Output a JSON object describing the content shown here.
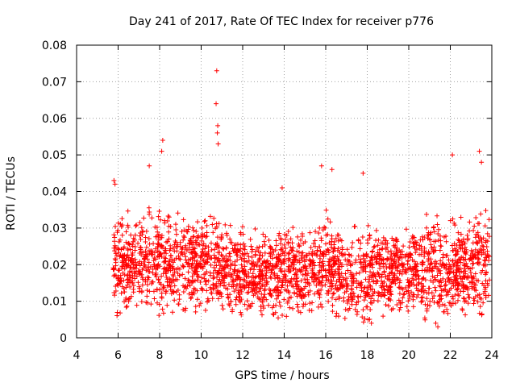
{
  "chart_data": {
    "type": "scatter",
    "title": "Day 241 of 2017, Rate Of TEC Index for receiver p776",
    "xlabel": "GPS time / hours",
    "ylabel": "ROTI / TECUs",
    "xlim": [
      4,
      24
    ],
    "ylim": [
      0,
      0.08
    ],
    "x_ticks": [
      4,
      6,
      8,
      10,
      12,
      14,
      16,
      18,
      20,
      22,
      24
    ],
    "x_tick_labels": [
      "4",
      "6",
      "8",
      "10",
      "12",
      "14",
      "16",
      "18",
      "20",
      "22",
      "24"
    ],
    "y_ticks": [
      0,
      0.01,
      0.02,
      0.03,
      0.04,
      0.05,
      0.06,
      0.07,
      0.08
    ],
    "y_tick_labels": [
      "0",
      "0.01",
      "0.02",
      "0.03",
      "0.04",
      "0.05",
      "0.06",
      "0.07",
      "0.08"
    ],
    "grid": true,
    "marker": "+",
    "marker_color": "#ff0000",
    "data_range_x": [
      5.75,
      23.9
    ],
    "notable_points": [
      {
        "x": 10.75,
        "y": 0.073
      },
      {
        "x": 10.72,
        "y": 0.064
      },
      {
        "x": 10.8,
        "y": 0.058
      },
      {
        "x": 10.78,
        "y": 0.056
      },
      {
        "x": 10.82,
        "y": 0.053
      },
      {
        "x": 8.15,
        "y": 0.054
      },
      {
        "x": 8.1,
        "y": 0.051
      },
      {
        "x": 22.1,
        "y": 0.05
      },
      {
        "x": 23.4,
        "y": 0.051
      },
      {
        "x": 23.5,
        "y": 0.048
      },
      {
        "x": 15.8,
        "y": 0.047
      },
      {
        "x": 16.3,
        "y": 0.046
      },
      {
        "x": 17.8,
        "y": 0.045
      },
      {
        "x": 7.5,
        "y": 0.047
      },
      {
        "x": 21.3,
        "y": 0.004
      },
      {
        "x": 21.4,
        "y": 0.003
      },
      {
        "x": 18.2,
        "y": 0.004
      },
      {
        "x": 5.8,
        "y": 0.043
      },
      {
        "x": 5.85,
        "y": 0.042
      },
      {
        "x": 13.9,
        "y": 0.041
      }
    ],
    "density_profile": [
      {
        "x": 6,
        "y_min": 0.006,
        "y_max": 0.036
      },
      {
        "x": 7,
        "y_min": 0.006,
        "y_max": 0.038
      },
      {
        "x": 8,
        "y_min": 0.006,
        "y_max": 0.04
      },
      {
        "x": 9,
        "y_min": 0.007,
        "y_max": 0.038
      },
      {
        "x": 10,
        "y_min": 0.007,
        "y_max": 0.037
      },
      {
        "x": 11,
        "y_min": 0.007,
        "y_max": 0.038
      },
      {
        "x": 12,
        "y_min": 0.006,
        "y_max": 0.033
      },
      {
        "x": 13,
        "y_min": 0.006,
        "y_max": 0.033
      },
      {
        "x": 14,
        "y_min": 0.005,
        "y_max": 0.038
      },
      {
        "x": 15,
        "y_min": 0.005,
        "y_max": 0.032
      },
      {
        "x": 16,
        "y_min": 0.005,
        "y_max": 0.04
      },
      {
        "x": 17,
        "y_min": 0.005,
        "y_max": 0.034
      },
      {
        "x": 18,
        "y_min": 0.004,
        "y_max": 0.036
      },
      {
        "x": 19,
        "y_min": 0.005,
        "y_max": 0.034
      },
      {
        "x": 20,
        "y_min": 0.006,
        "y_max": 0.036
      },
      {
        "x": 21,
        "y_min": 0.004,
        "y_max": 0.038
      },
      {
        "x": 22,
        "y_min": 0.005,
        "y_max": 0.036
      },
      {
        "x": 23,
        "y_min": 0.005,
        "y_max": 0.036
      },
      {
        "x": 23.9,
        "y_min": 0.005,
        "y_max": 0.04
      }
    ]
  }
}
